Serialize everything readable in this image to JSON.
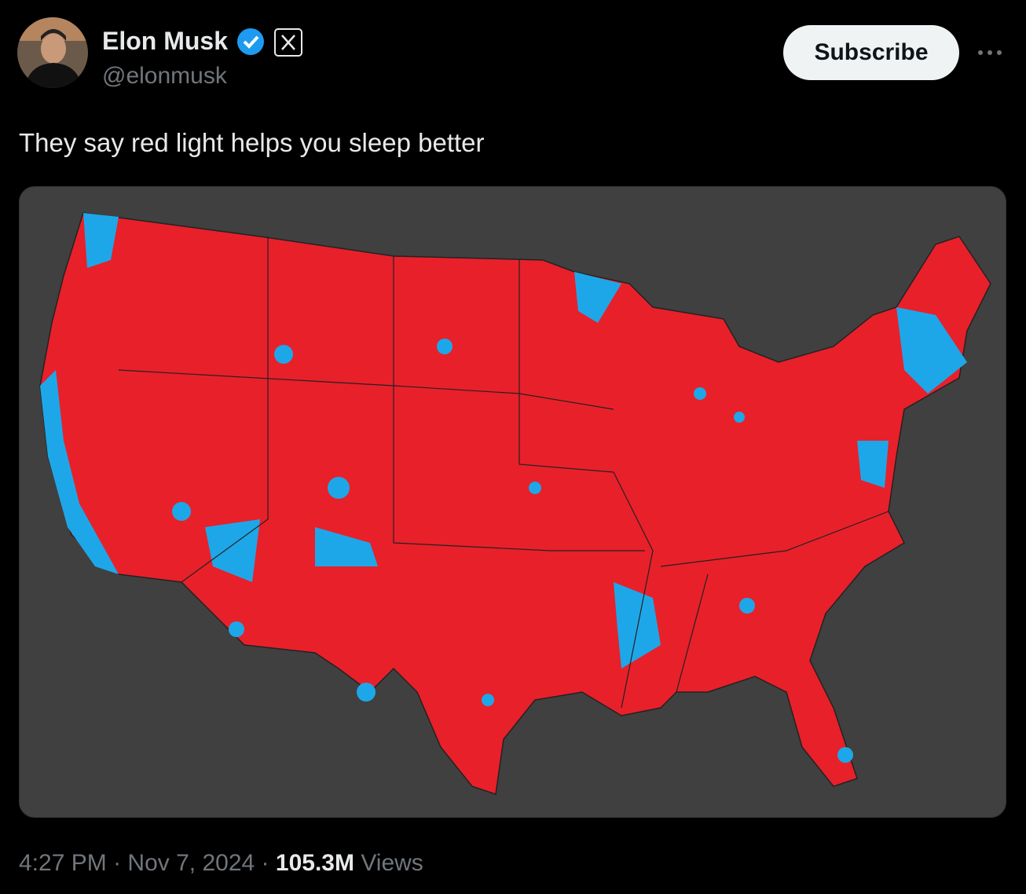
{
  "author": {
    "name": "Elon Musk",
    "handle": "@elonmusk"
  },
  "subscribe_button": "Subscribe",
  "tweet": {
    "text": "They say red light helps you sleep better"
  },
  "footer": {
    "time": "4:27 PM",
    "separator": "·",
    "date": "Nov 7, 2024",
    "views_count": "105.3M",
    "views_label": "Views"
  }
}
